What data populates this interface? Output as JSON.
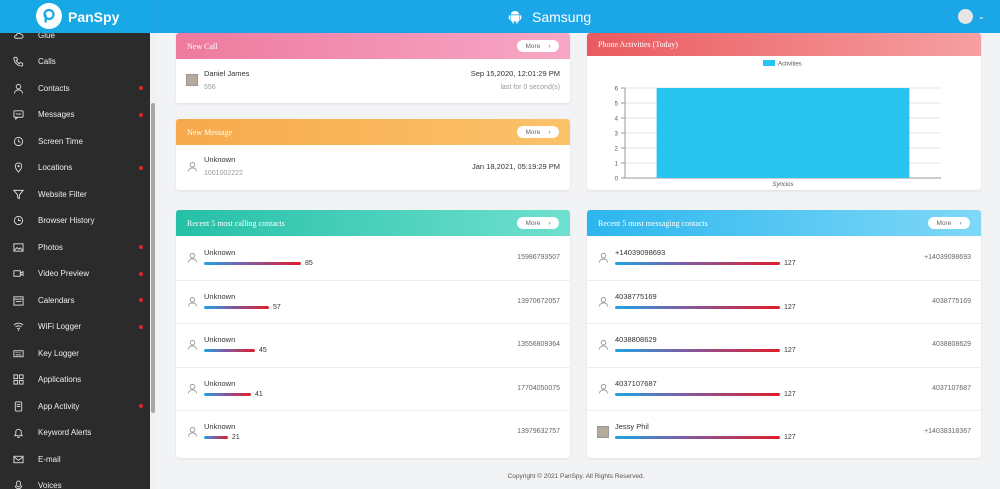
{
  "brand": {
    "name": "PanSpy"
  },
  "device": {
    "name": "Samsung"
  },
  "nav": [
    {
      "label": "Glue",
      "icon": "cloud-icon",
      "dot": false
    },
    {
      "label": "Calls",
      "icon": "phone-icon",
      "dot": false
    },
    {
      "label": "Contacts",
      "icon": "user-icon",
      "dot": true
    },
    {
      "label": "Messages",
      "icon": "message-icon",
      "dot": true
    },
    {
      "label": "Screen Time",
      "icon": "hourglass-icon",
      "dot": false
    },
    {
      "label": "Locations",
      "icon": "location-icon",
      "dot": true
    },
    {
      "label": "Website Filter",
      "icon": "filter-icon",
      "dot": false
    },
    {
      "label": "Browser History",
      "icon": "history-icon",
      "dot": false
    },
    {
      "label": "Photos",
      "icon": "image-icon",
      "dot": true
    },
    {
      "label": "Video Preview",
      "icon": "video-icon",
      "dot": true
    },
    {
      "label": "Calendars",
      "icon": "calendar-icon",
      "dot": true
    },
    {
      "label": "WiFi Logger",
      "icon": "wifi-icon",
      "dot": true
    },
    {
      "label": "Key Logger",
      "icon": "keyboard-icon",
      "dot": false
    },
    {
      "label": "Applications",
      "icon": "apps-icon",
      "dot": false
    },
    {
      "label": "App Activity",
      "icon": "app-activity-icon",
      "dot": true
    },
    {
      "label": "Keyword Alerts",
      "icon": "bell-icon",
      "dot": false
    },
    {
      "label": "E-mail",
      "icon": "mail-icon",
      "dot": false
    },
    {
      "label": "Voices",
      "icon": "voice-icon",
      "dot": false
    }
  ],
  "new_call": {
    "title": "New Call",
    "more": "More",
    "name": "Daniel James",
    "number": "556",
    "time": "Sep 15,2020, 12:01:29 PM",
    "duration": "last for 0 second(s)"
  },
  "new_message": {
    "title": "New Message",
    "more": "More",
    "name": "Unknown",
    "number": "1001002222",
    "time": "Jan 18,2021, 05:19:29 PM"
  },
  "activities": {
    "title": "Phone Activities (Today)"
  },
  "chart_data": {
    "type": "bar",
    "categories": [
      "Syncios"
    ],
    "series": [
      {
        "name": "Activities",
        "values": [
          6
        ]
      }
    ],
    "ylim": [
      0,
      6
    ],
    "yticks": [
      0,
      1,
      2,
      3,
      4,
      5,
      6
    ],
    "color": "#29c5f0",
    "legend": "top-center",
    "grid": true
  },
  "calling": {
    "title": "Recent 5 most calling contacts",
    "more": "More",
    "max": 85,
    "rows": [
      {
        "name": "Unknown",
        "count": 85,
        "phone": "15986793507"
      },
      {
        "name": "Unknown",
        "count": 57,
        "phone": "13970672057"
      },
      {
        "name": "Unknown",
        "count": 45,
        "phone": "13556809364"
      },
      {
        "name": "Unknown",
        "count": 41,
        "phone": "17704050075"
      },
      {
        "name": "Unknown",
        "count": 21,
        "phone": "13979632757"
      }
    ]
  },
  "messaging": {
    "title": "Recent 5 most messaging contacts",
    "more": "More",
    "max": 127,
    "rows": [
      {
        "name": "+14039098693",
        "count": 127,
        "phone": "+14039098693"
      },
      {
        "name": "4038775169",
        "count": 127,
        "phone": "4038775169"
      },
      {
        "name": "4038808629",
        "count": 127,
        "phone": "4038808629"
      },
      {
        "name": "4037107687",
        "count": 127,
        "phone": "4037107687"
      },
      {
        "name": "Jessy Phil",
        "count": 127,
        "phone": "+14038318367"
      }
    ]
  },
  "footer": {
    "text": "Copyright © 2021 PanSpy. All Rights Reserved."
  }
}
